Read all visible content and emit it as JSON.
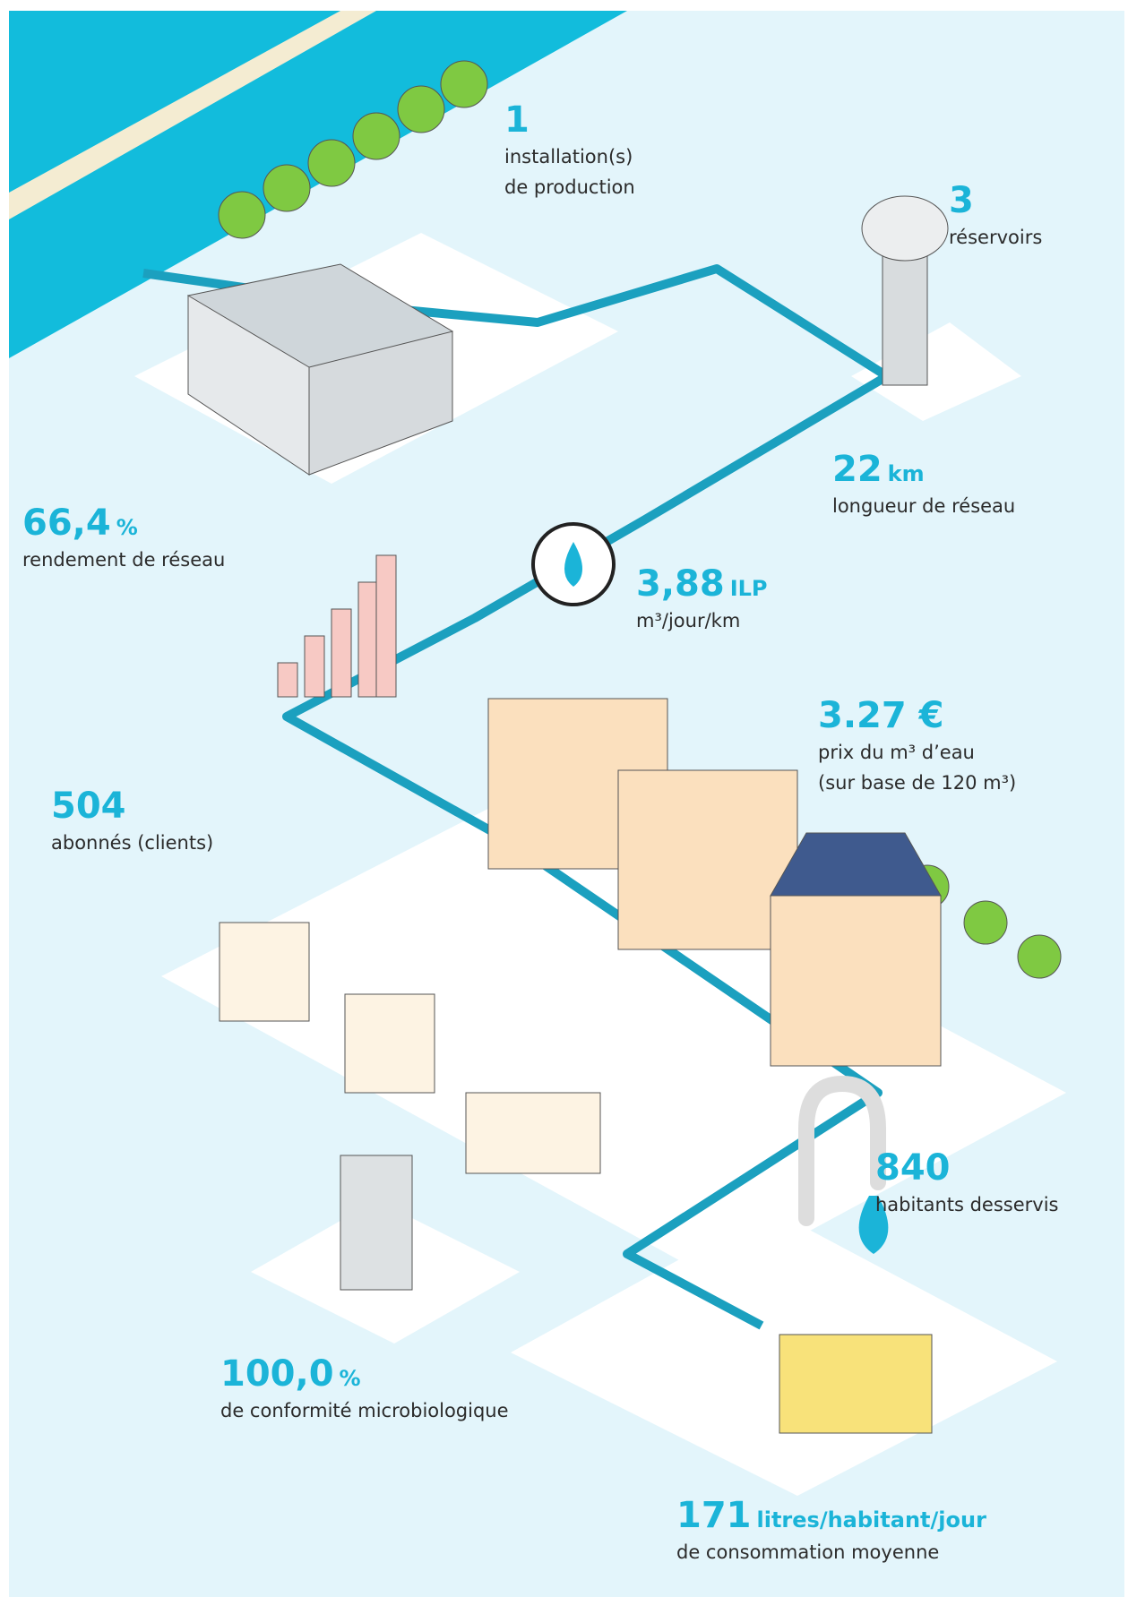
{
  "stats": [
    {
      "value": "1",
      "label": [
        "installation(s)",
        "de production"
      ]
    },
    {
      "value": "3",
      "label": [
        "réservoirs"
      ]
    },
    {
      "value": "22",
      "unit": "km",
      "label": [
        "longueur de réseau"
      ]
    },
    {
      "value": "66,4",
      "unit": "%",
      "label": [
        "rendement de réseau"
      ]
    },
    {
      "value": "3,88",
      "unit": "ILP",
      "label": [
        "m³/jour/km"
      ]
    },
    {
      "value": "3.27 €",
      "label": [
        "prix du m³ d’eau",
        "(sur base de 120 m³)"
      ]
    },
    {
      "value": "504",
      "label": [
        "abonnés (clients)"
      ]
    },
    {
      "value": "840",
      "label": [
        "habitants desservis"
      ]
    },
    {
      "value": "100,0",
      "unit": "%",
      "label": [
        "de conformité microbiologique"
      ]
    },
    {
      "value": "171",
      "unit": "litres/habitant/jour",
      "label": [
        "de consommation moyenne"
      ]
    }
  ]
}
